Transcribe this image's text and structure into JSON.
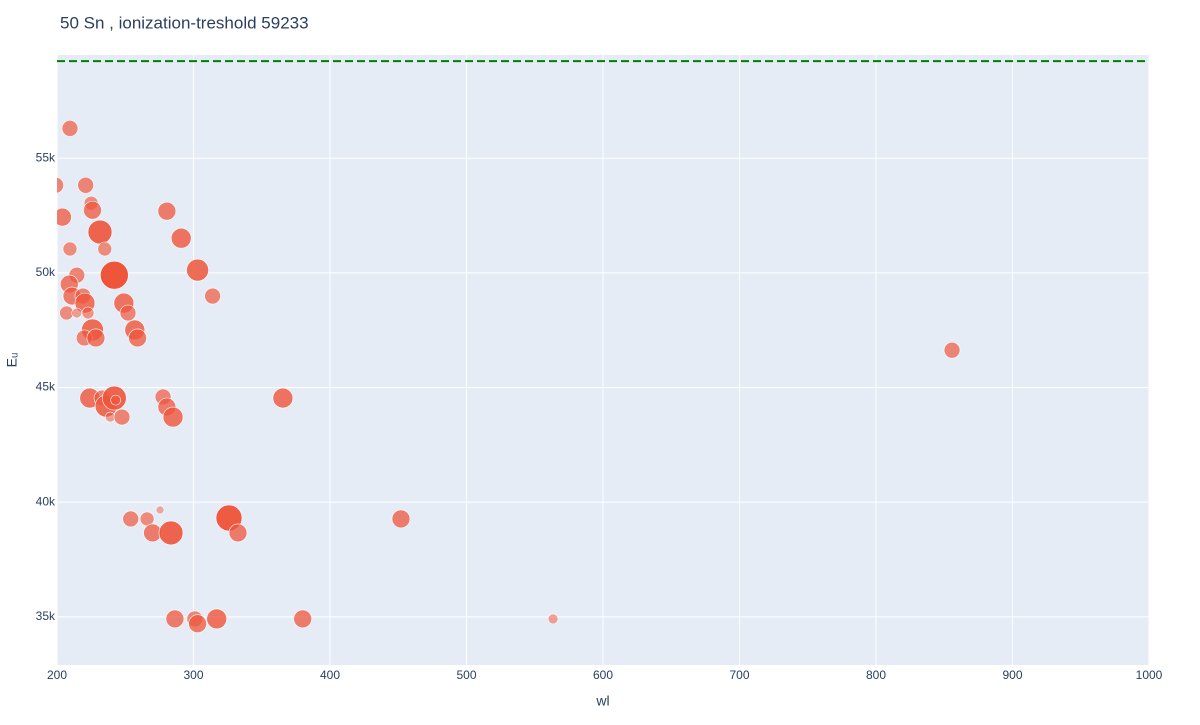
{
  "chart_data": {
    "type": "scatter",
    "title": "50 Sn , ionization-treshold 59233",
    "x_label": "wl",
    "y_label": "Eᵤ",
    "color": "#ef553b",
    "threshold": 59233,
    "threshold_color": "#008000",
    "xlim": [
      200,
      1000
    ],
    "ylim": [
      32900,
      59500
    ],
    "xticks": [
      200,
      300,
      400,
      500,
      600,
      700,
      800,
      900,
      1000
    ],
    "yticks": [
      {
        "value": 35000,
        "label": "35k"
      },
      {
        "value": 40000,
        "label": "40k"
      },
      {
        "value": 45000,
        "label": "45k"
      },
      {
        "value": 50000,
        "label": "50k"
      },
      {
        "value": 55000,
        "label": "55k"
      }
    ],
    "grid": true,
    "x": [
      209.5,
      199,
      221,
      204,
      225,
      226,
      231.5,
      209.5,
      235,
      242,
      214.5,
      209,
      211,
      219,
      220.5,
      207,
      222.7,
      214.5,
      249,
      252,
      226,
      220,
      228.5,
      257,
      259,
      280.5,
      291,
      303,
      314,
      224,
      233,
      236,
      242,
      243,
      239,
      247.6,
      277.7,
      280.5,
      285,
      365.5,
      855.7,
      254,
      266,
      275.5,
      270,
      283.5,
      326,
      332.6,
      452,
      286.4,
      301,
      303,
      317,
      380,
      563.4
    ],
    "y": [
      56300,
      53820,
      53820,
      52430,
      53040,
      52730,
      51780,
      51040,
      51040,
      49900,
      49900,
      49510,
      48990,
      48990,
      48680,
      48250,
      48250,
      48250,
      48680,
      48250,
      47510,
      47160,
      47160,
      47510,
      47160,
      52690,
      51510,
      50120,
      48990,
      44540,
      44540,
      44190,
      44540,
      44450,
      43710,
      43710,
      44590,
      44150,
      43710,
      44540,
      46630,
      39270,
      39270,
      39660,
      38660,
      38660,
      39310,
      38660,
      39270,
      34910,
      34910,
      34700,
      34910,
      34910,
      34910
    ],
    "sizes": [
      8,
      8,
      8,
      9,
      7,
      9,
      12,
      7,
      7,
      14,
      8,
      9,
      9,
      8,
      10,
      7,
      6,
      5,
      10,
      8,
      11,
      8,
      9,
      10,
      9,
      9,
      10,
      11,
      8,
      10,
      8,
      11,
      12,
      5,
      5,
      8,
      8,
      9,
      10,
      10,
      8,
      8,
      7,
      4,
      9,
      12,
      13,
      9,
      9,
      9,
      8,
      9,
      10,
      9,
      5
    ]
  }
}
